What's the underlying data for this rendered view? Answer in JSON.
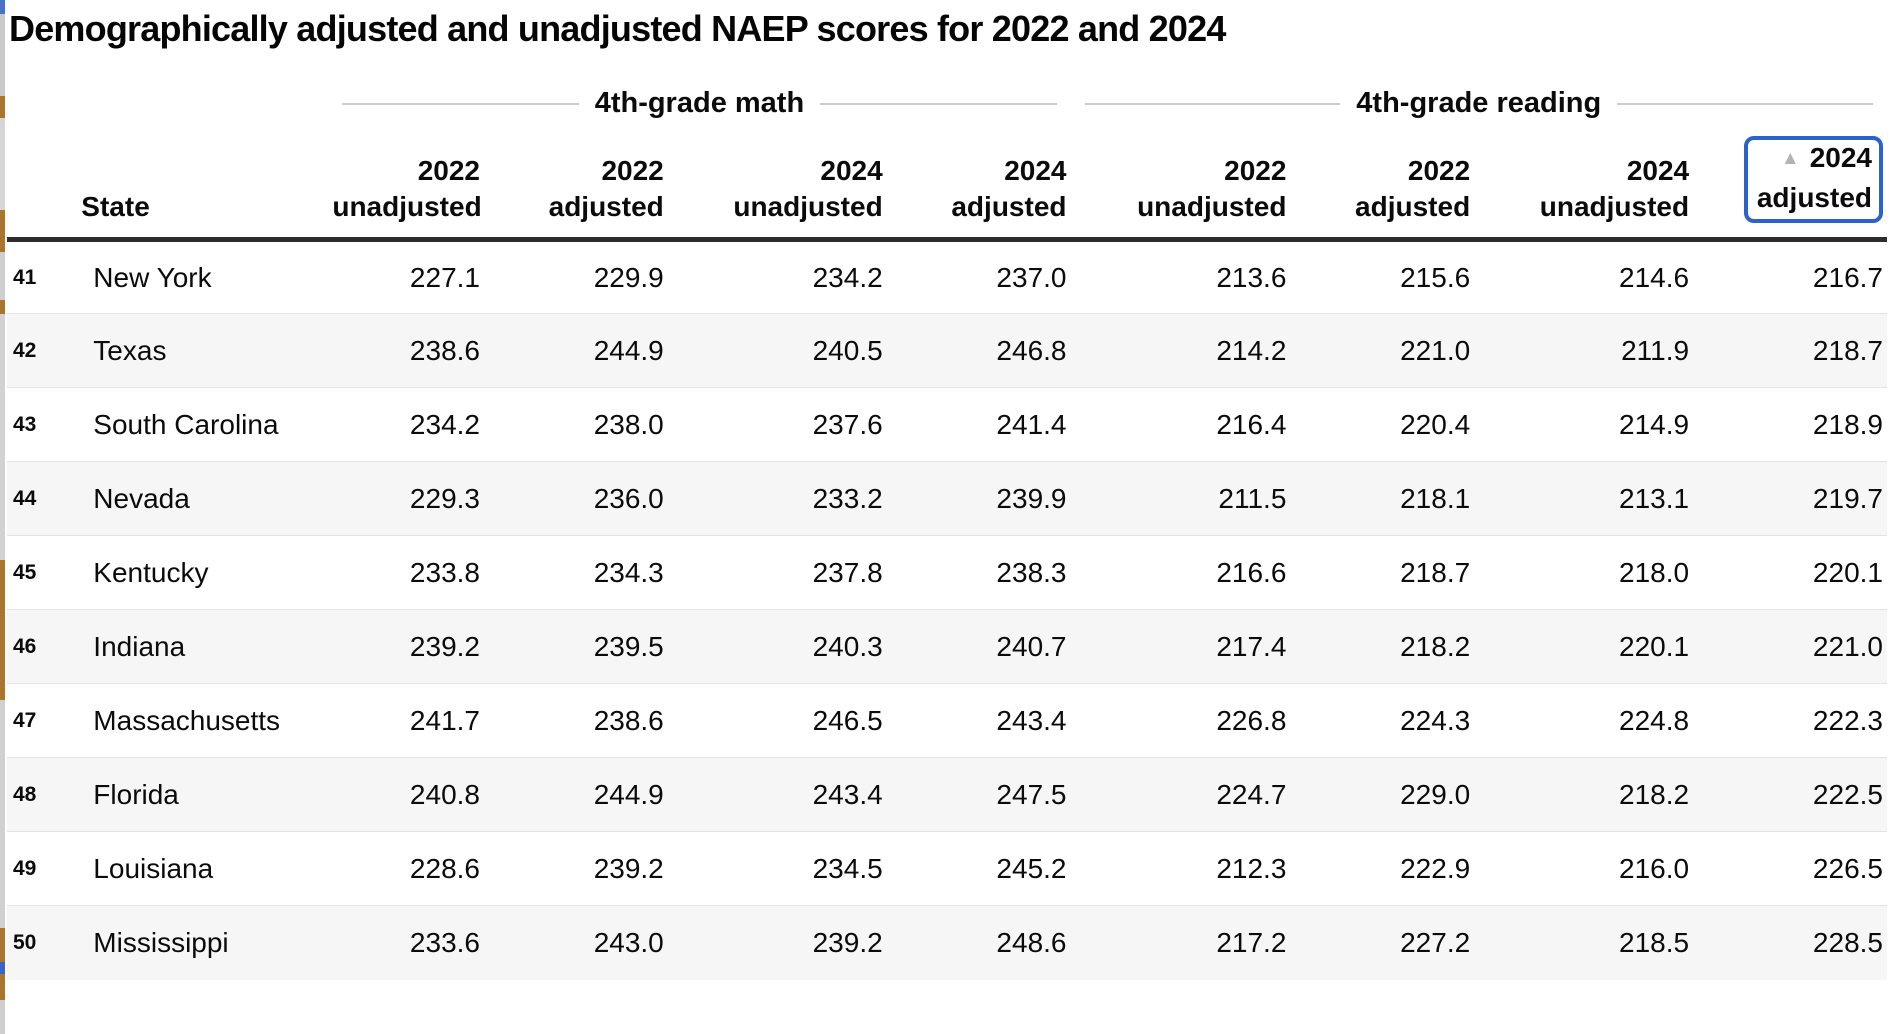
{
  "page": {
    "title": "Demographically adjusted and unadjusted NAEP scores for 2022 and 2024"
  },
  "table": {
    "groups": [
      {
        "label": "4th-grade math"
      },
      {
        "label": "4th-grade reading"
      }
    ],
    "state_header": "State",
    "subheaders": [
      {
        "year": "2022",
        "kind": "unadjusted"
      },
      {
        "year": "2022",
        "kind": "adjusted"
      },
      {
        "year": "2024",
        "kind": "unadjusted"
      },
      {
        "year": "2024",
        "kind": "adjusted"
      },
      {
        "year": "2022",
        "kind": "unadjusted"
      },
      {
        "year": "2022",
        "kind": "adjusted"
      },
      {
        "year": "2024",
        "kind": "unadjusted"
      },
      {
        "year": "2024",
        "kind": "adjusted"
      }
    ],
    "sort": {
      "column": "reading-2024-adjusted",
      "direction": "ascending",
      "indicator": "▲"
    },
    "rows": [
      {
        "rank": "41",
        "state": "New York",
        "math": [
          "227.1",
          "229.9",
          "234.2",
          "237.0"
        ],
        "reading": [
          "213.6",
          "215.6",
          "214.6",
          "216.7"
        ]
      },
      {
        "rank": "42",
        "state": "Texas",
        "math": [
          "238.6",
          "244.9",
          "240.5",
          "246.8"
        ],
        "reading": [
          "214.2",
          "221.0",
          "211.9",
          "218.7"
        ]
      },
      {
        "rank": "43",
        "state": "South Carolina",
        "math": [
          "234.2",
          "238.0",
          "237.6",
          "241.4"
        ],
        "reading": [
          "216.4",
          "220.4",
          "214.9",
          "218.9"
        ]
      },
      {
        "rank": "44",
        "state": "Nevada",
        "math": [
          "229.3",
          "236.0",
          "233.2",
          "239.9"
        ],
        "reading": [
          "211.5",
          "218.1",
          "213.1",
          "219.7"
        ]
      },
      {
        "rank": "45",
        "state": "Kentucky",
        "math": [
          "233.8",
          "234.3",
          "237.8",
          "238.3"
        ],
        "reading": [
          "216.6",
          "218.7",
          "218.0",
          "220.1"
        ]
      },
      {
        "rank": "46",
        "state": "Indiana",
        "math": [
          "239.2",
          "239.5",
          "240.3",
          "240.7"
        ],
        "reading": [
          "217.4",
          "218.2",
          "220.1",
          "221.0"
        ]
      },
      {
        "rank": "47",
        "state": "Massachusetts",
        "math": [
          "241.7",
          "238.6",
          "246.5",
          "243.4"
        ],
        "reading": [
          "226.8",
          "224.3",
          "224.8",
          "222.3"
        ]
      },
      {
        "rank": "48",
        "state": "Florida",
        "math": [
          "240.8",
          "244.9",
          "243.4",
          "247.5"
        ],
        "reading": [
          "224.7",
          "229.0",
          "218.2",
          "222.5"
        ]
      },
      {
        "rank": "49",
        "state": "Louisiana",
        "math": [
          "228.6",
          "239.2",
          "234.5",
          "245.2"
        ],
        "reading": [
          "212.3",
          "222.9",
          "216.0",
          "226.5"
        ]
      },
      {
        "rank": "50",
        "state": "Mississippi",
        "math": [
          "233.6",
          "243.0",
          "239.2",
          "248.6"
        ],
        "reading": [
          "217.2",
          "227.2",
          "218.5",
          "228.5"
        ]
      }
    ]
  },
  "colors": {
    "accent_blue": "#2b62cb",
    "row_stripe": "#f6f6f6",
    "header_rule": "#2d2d2d",
    "group_line": "#cccccc",
    "sort_triangle": "#b3b3b3"
  }
}
